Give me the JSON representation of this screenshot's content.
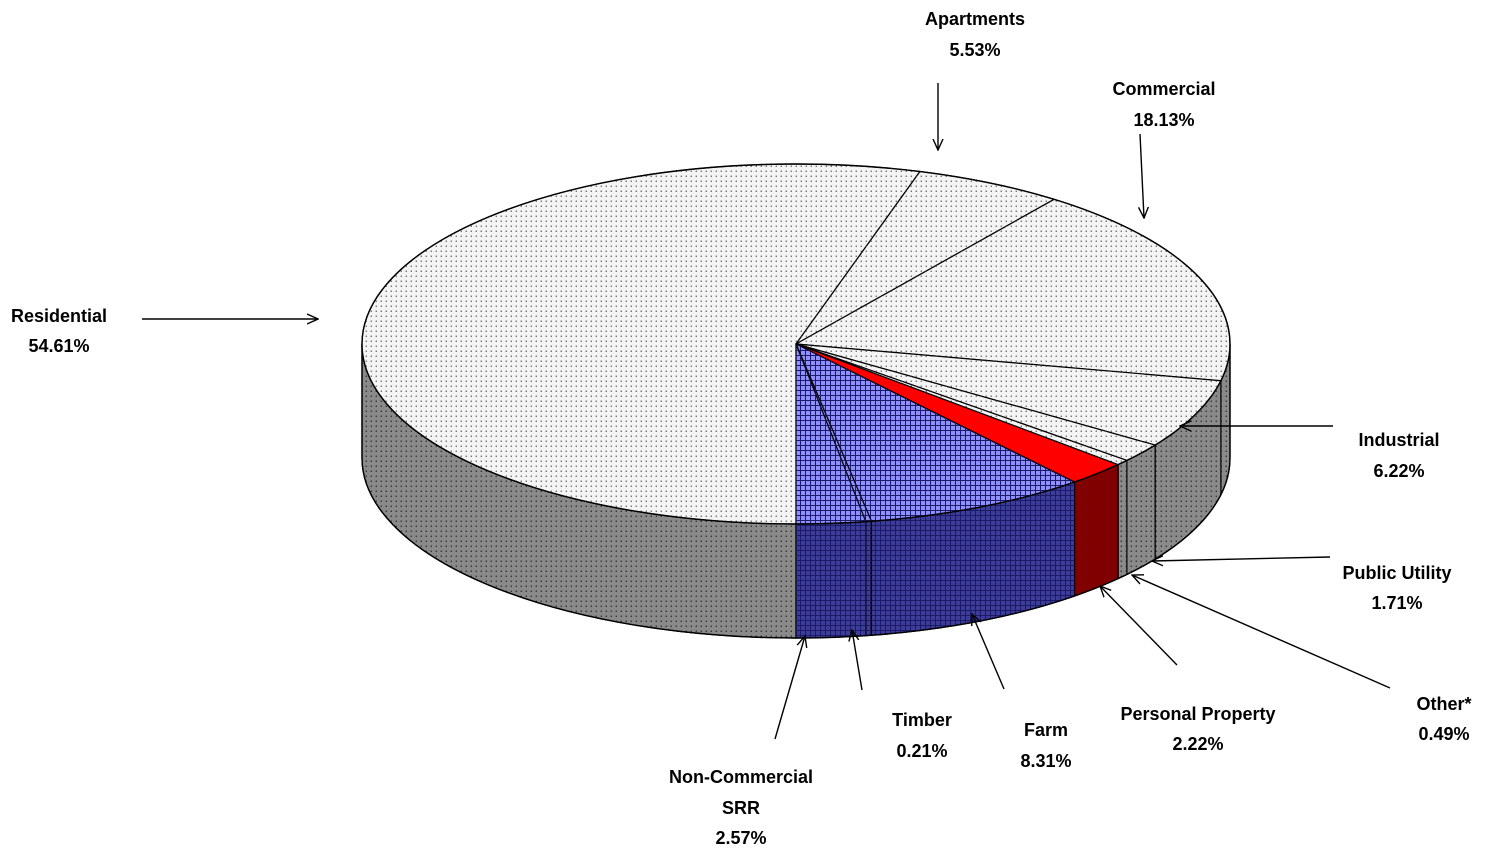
{
  "chart_data": {
    "type": "pie",
    "title": "",
    "unit": "%",
    "slices": [
      {
        "label": "Residential",
        "value": 54.61,
        "display": "54.61%",
        "top": "#f4f4f4",
        "side": "#8a8a8a",
        "pattern": "dots"
      },
      {
        "label": "Apartments",
        "value": 5.53,
        "display": "5.53%",
        "top": "#f4f4f4",
        "side": "#8a8a8a",
        "pattern": "dots"
      },
      {
        "label": "Commercial",
        "value": 18.13,
        "display": "18.13%",
        "top": "#f4f4f4",
        "side": "#8a8a8a",
        "pattern": "dots"
      },
      {
        "label": "Industrial",
        "value": 6.22,
        "display": "6.22%",
        "top": "#f4f4f4",
        "side": "#8a8a8a",
        "pattern": "dots"
      },
      {
        "label": "Public Utility",
        "value": 1.71,
        "display": "1.71%",
        "top": "#f4f4f4",
        "side": "#8a8a8a",
        "pattern": "dots"
      },
      {
        "label": "Other*",
        "value": 0.49,
        "display": "0.49%",
        "top": "#f4f4f4",
        "side": "#8a8a8a",
        "pattern": "dots"
      },
      {
        "label": "Personal Property",
        "value": 2.22,
        "display": "2.22%",
        "top": "#ff0000",
        "side": "#800000",
        "pattern": "none"
      },
      {
        "label": "Farm",
        "value": 8.31,
        "display": "8.31%",
        "top": "#8f8fff",
        "side": "#3d3d99",
        "pattern": "grid"
      },
      {
        "label": "Timber",
        "value": 0.21,
        "display": "0.21%",
        "top": "#8f8fff",
        "side": "#3d3d99",
        "pattern": "grid"
      },
      {
        "label": "Non-Commercial SRR",
        "value": 2.57,
        "display": "2.57%",
        "top": "#8f8fff",
        "side": "#3d3d99",
        "pattern": "grid"
      }
    ],
    "legend": "none",
    "grid": false
  }
}
